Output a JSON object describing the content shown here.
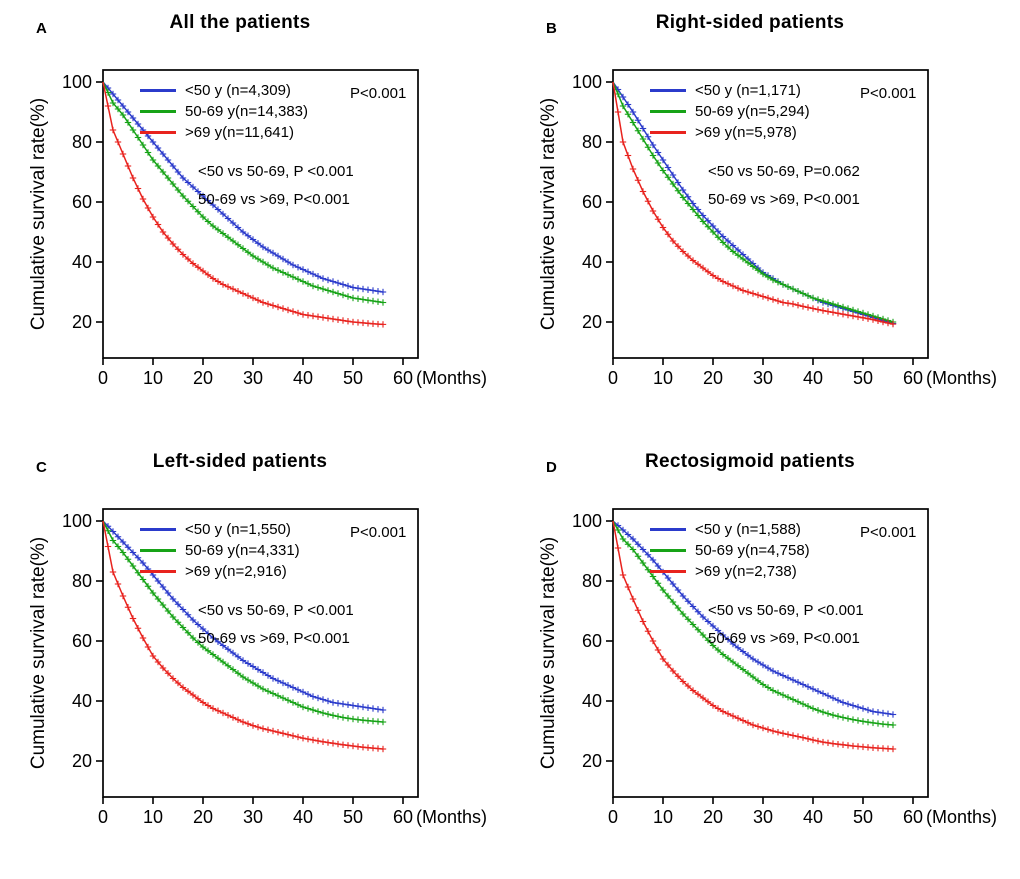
{
  "ylabel_shared": "Cumulative survival rate(%)",
  "chart_data": [
    {
      "type": "line",
      "panel": "A",
      "title": "All the patients",
      "overall_p": "P<0.001",
      "legend": [
        "<50 y (n=4,309)",
        "50-69 y(n=14,383)",
        ">69 y(n=11,641)"
      ],
      "annotations": [
        "<50 vs 50-69, P <0.001",
        "50-69 vs >69, P<0.001"
      ],
      "ylabel": "Cumulative survival rate(%)",
      "xlabel": "(Months)",
      "xticks": [
        0,
        10,
        20,
        30,
        40,
        50,
        60
      ],
      "yticks": [
        20,
        40,
        60,
        80,
        100
      ],
      "xlim": [
        0,
        63
      ],
      "ylim": [
        8,
        104
      ],
      "x": [
        0,
        2,
        4,
        6,
        8,
        10,
        12,
        14,
        16,
        18,
        20,
        22,
        24,
        26,
        28,
        30,
        32,
        34,
        36,
        38,
        40,
        42,
        44,
        46,
        48,
        50,
        52,
        54,
        56
      ],
      "series": [
        {
          "name": "<50 y",
          "color": "#2b3bcb",
          "values": [
            100,
            96,
            92,
            88,
            84,
            80,
            76,
            72,
            68,
            65,
            62,
            59,
            56,
            53,
            50,
            47.5,
            45,
            43,
            41,
            39,
            37.5,
            36,
            34.5,
            33.5,
            32.5,
            31.5,
            31,
            30.5,
            30
          ]
        },
        {
          "name": "50-69 y",
          "color": "#17a317",
          "values": [
            100,
            93,
            89,
            84,
            79,
            74,
            70,
            66,
            62,
            58.5,
            55,
            52,
            49.5,
            47,
            44.5,
            42,
            40,
            38,
            36.5,
            35,
            33.5,
            32,
            31,
            30,
            29,
            28,
            27.5,
            27,
            26.5
          ]
        },
        {
          "name": ">69 y",
          "color": "#e8231e",
          "values": [
            100,
            84,
            76,
            68,
            61,
            55,
            50,
            46,
            42.5,
            39.5,
            37,
            34.5,
            32.5,
            31,
            29.5,
            28,
            26.5,
            25.5,
            24.5,
            23.5,
            22.5,
            22,
            21.5,
            21,
            20.5,
            20,
            19.7,
            19.4,
            19.2
          ]
        }
      ]
    },
    {
      "type": "line",
      "panel": "B",
      "title": "Right-sided patients",
      "overall_p": "P<0.001",
      "legend": [
        "<50 y (n=1,171)",
        "50-69 y(n=5,294)",
        ">69 y(n=5,978)"
      ],
      "annotations": [
        "<50 vs 50-69, P=0.062",
        "50-69 vs >69, P<0.001"
      ],
      "ylabel": "Cumulative survival rate(%)",
      "xlabel": "(Months)",
      "xticks": [
        0,
        10,
        20,
        30,
        40,
        50,
        60
      ],
      "yticks": [
        20,
        40,
        60,
        80,
        100
      ],
      "xlim": [
        0,
        63
      ],
      "ylim": [
        8,
        104
      ],
      "x": [
        0,
        2,
        4,
        6,
        8,
        10,
        12,
        14,
        16,
        18,
        20,
        22,
        24,
        26,
        28,
        30,
        32,
        34,
        36,
        38,
        40,
        42,
        44,
        46,
        48,
        50,
        52,
        54,
        56
      ],
      "series": [
        {
          "name": "<50 y",
          "color": "#2b3bcb",
          "values": [
            100,
            95,
            90,
            84.5,
            79,
            74,
            69,
            64,
            59.5,
            55.5,
            52,
            48.5,
            45.5,
            42.5,
            39.5,
            36.5,
            34.5,
            32.5,
            31,
            29.5,
            28,
            26.5,
            25.5,
            24.5,
            23.5,
            22.5,
            21.5,
            20.5,
            19.5
          ]
        },
        {
          "name": "50-69 y",
          "color": "#17a317",
          "values": [
            100,
            92,
            86.5,
            81,
            75.5,
            70.5,
            66,
            61.5,
            57.5,
            53.5,
            50,
            46.5,
            43.5,
            41,
            38.5,
            36,
            34,
            32.5,
            31,
            29.5,
            28,
            27,
            26,
            25,
            24,
            23,
            22,
            21,
            20
          ]
        },
        {
          "name": ">69 y",
          "color": "#e8231e",
          "values": [
            100,
            80,
            71,
            63.5,
            57,
            51.5,
            47,
            43.5,
            40.5,
            38,
            35.5,
            33.5,
            32,
            30.5,
            29.5,
            28.5,
            27.5,
            26.5,
            26,
            25.2,
            24.5,
            23.8,
            23.2,
            22.6,
            22,
            21.4,
            20.8,
            20,
            19.3
          ]
        }
      ]
    },
    {
      "type": "line",
      "panel": "C",
      "title": "Left-sided patients",
      "overall_p": "P<0.001",
      "legend": [
        "<50 y (n=1,550)",
        "50-69 y(n=4,331)",
        ">69 y(n=2,916)"
      ],
      "annotations": [
        "<50 vs 50-69, P <0.001",
        "50-69 vs >69, P<0.001"
      ],
      "ylabel": "Cumulative survival rate(%)",
      "xlabel": "(Months)",
      "xticks": [
        0,
        10,
        20,
        30,
        40,
        50,
        60
      ],
      "yticks": [
        20,
        40,
        60,
        80,
        100
      ],
      "xlim": [
        0,
        63
      ],
      "ylim": [
        8,
        104
      ],
      "x": [
        0,
        2,
        4,
        6,
        8,
        10,
        12,
        14,
        16,
        18,
        20,
        22,
        24,
        26,
        28,
        30,
        32,
        34,
        36,
        38,
        40,
        42,
        44,
        46,
        48,
        50,
        52,
        54,
        56
      ],
      "series": [
        {
          "name": "<50 y",
          "color": "#2b3bcb",
          "values": [
            100,
            96.5,
            93,
            89.5,
            86,
            82,
            78,
            74,
            70.5,
            67,
            64,
            61,
            58.5,
            56,
            53.5,
            51.5,
            49.5,
            47.5,
            46,
            44.5,
            43,
            41.5,
            40.5,
            39.5,
            39,
            38.5,
            38,
            37.5,
            37
          ]
        },
        {
          "name": "50-69 y",
          "color": "#17a317",
          "values": [
            100,
            93.5,
            89.5,
            85,
            80.5,
            76,
            72,
            68,
            64.5,
            61,
            58,
            55.5,
            53,
            50.5,
            48,
            46,
            44,
            42.5,
            41,
            39.5,
            38,
            37,
            36,
            35.2,
            34.5,
            34,
            33.6,
            33.3,
            33
          ]
        },
        {
          "name": ">69 y",
          "color": "#e8231e",
          "values": [
            100,
            83,
            75,
            67.5,
            61,
            55,
            51,
            47.5,
            44.5,
            42,
            39.5,
            37.5,
            36,
            34.5,
            33,
            31.8,
            30.8,
            30,
            29.2,
            28.4,
            27.6,
            27,
            26.4,
            25.9,
            25.4,
            25,
            24.6,
            24.3,
            24
          ]
        }
      ]
    },
    {
      "type": "line",
      "panel": "D",
      "title": "Rectosigmoid patients",
      "overall_p": "P<0.001",
      "legend": [
        "<50 y (n=1,588)",
        "50-69 y(n=4,758)",
        ">69 y(n=2,738)"
      ],
      "annotations": [
        "<50 vs 50-69, P <0.001",
        "50-69 vs >69, P<0.001"
      ],
      "ylabel": "Cumulative survival rate(%)",
      "xlabel": "(Months)",
      "xticks": [
        0,
        10,
        20,
        30,
        40,
        50,
        60
      ],
      "yticks": [
        20,
        40,
        60,
        80,
        100
      ],
      "xlim": [
        0,
        63
      ],
      "ylim": [
        8,
        104
      ],
      "x": [
        0,
        2,
        4,
        6,
        8,
        10,
        12,
        14,
        16,
        18,
        20,
        22,
        24,
        26,
        28,
        30,
        32,
        34,
        36,
        38,
        40,
        42,
        44,
        46,
        48,
        50,
        52,
        54,
        56
      ],
      "series": [
        {
          "name": "<50 y",
          "color": "#2b3bcb",
          "values": [
            100,
            97,
            94,
            90.5,
            87,
            83,
            79,
            75,
            71.5,
            68,
            65,
            62,
            59,
            56.5,
            54,
            52,
            50,
            48.5,
            47,
            45.5,
            44,
            42.5,
            41,
            39.5,
            38.5,
            37.5,
            36.5,
            36,
            35.5
          ]
        },
        {
          "name": "50-69 y",
          "color": "#17a317",
          "values": [
            100,
            94,
            90.5,
            86,
            81.5,
            77,
            73,
            69,
            65.5,
            62,
            58.5,
            55.5,
            53,
            50.5,
            48,
            45.5,
            43.5,
            42,
            40.5,
            39,
            37.5,
            36.3,
            35.3,
            34.5,
            33.8,
            33.2,
            32.7,
            32.3,
            32
          ]
        },
        {
          "name": ">69 y",
          "color": "#e8231e",
          "values": [
            100,
            82,
            74,
            66.5,
            60,
            54,
            50,
            46.5,
            43.5,
            41,
            38.5,
            36.5,
            35,
            33.5,
            32,
            31,
            30,
            29.2,
            28.5,
            27.8,
            27,
            26.3,
            25.8,
            25.4,
            25,
            24.7,
            24.4,
            24.2,
            24
          ]
        }
      ]
    }
  ]
}
